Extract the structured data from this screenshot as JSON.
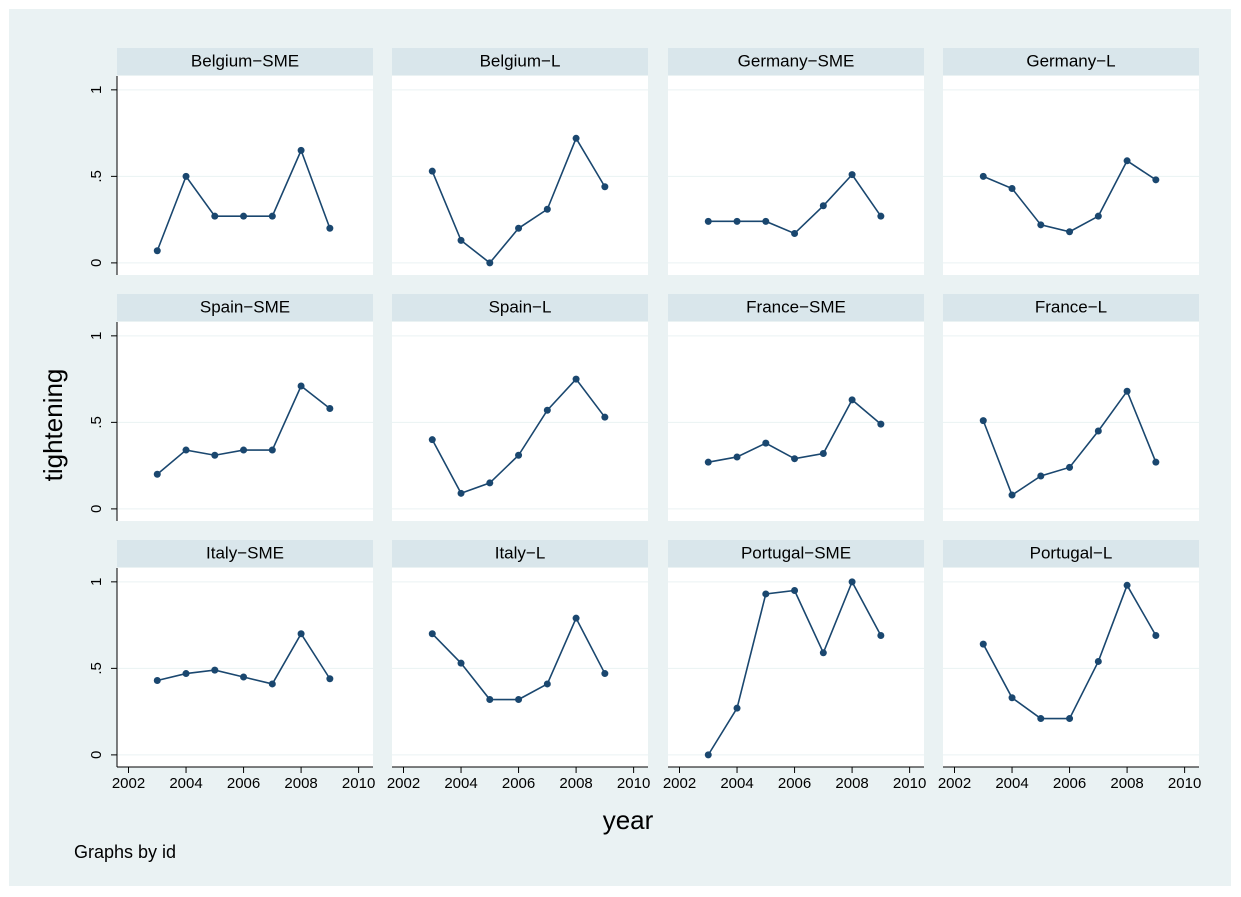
{
  "xlabel": "year",
  "ylabel": "tightening",
  "note": "Graphs by id",
  "xlim": [
    2001.6,
    2010.5
  ],
  "xticks": [
    2002,
    2004,
    2006,
    2008,
    2010
  ],
  "ylim": [
    -0.07,
    1.08
  ],
  "yticks": [
    0,
    {
      "value": 0.5,
      "label": ".5"
    },
    1
  ],
  "grid": true,
  "color": "#1a476f",
  "chart_data": [
    {
      "type": "line",
      "title": "Belgium−SME",
      "x": [
        2003,
        2004,
        2005,
        2006,
        2007,
        2008,
        2009
      ],
      "values": [
        0.07,
        0.5,
        0.27,
        0.27,
        0.27,
        0.65,
        0.2
      ]
    },
    {
      "type": "line",
      "title": "Belgium−L",
      "x": [
        2003,
        2004,
        2005,
        2006,
        2007,
        2008,
        2009
      ],
      "values": [
        0.53,
        0.13,
        0.0,
        0.2,
        0.31,
        0.72,
        0.44
      ]
    },
    {
      "type": "line",
      "title": "Germany−SME",
      "x": [
        2003,
        2004,
        2005,
        2006,
        2007,
        2008,
        2009
      ],
      "values": [
        0.24,
        0.24,
        0.24,
        0.17,
        0.33,
        0.51,
        0.27
      ]
    },
    {
      "type": "line",
      "title": "Germany−L",
      "x": [
        2003,
        2004,
        2005,
        2006,
        2007,
        2008,
        2009
      ],
      "values": [
        0.5,
        0.43,
        0.22,
        0.18,
        0.27,
        0.59,
        0.48
      ]
    },
    {
      "type": "line",
      "title": "Spain−SME",
      "x": [
        2003,
        2004,
        2005,
        2006,
        2007,
        2008,
        2009
      ],
      "values": [
        0.2,
        0.34,
        0.31,
        0.34,
        0.34,
        0.71,
        0.58
      ]
    },
    {
      "type": "line",
      "title": "Spain−L",
      "x": [
        2003,
        2004,
        2005,
        2006,
        2007,
        2008,
        2009
      ],
      "values": [
        0.4,
        0.09,
        0.15,
        0.31,
        0.57,
        0.75,
        0.53
      ]
    },
    {
      "type": "line",
      "title": "France−SME",
      "x": [
        2003,
        2004,
        2005,
        2006,
        2007,
        2008,
        2009
      ],
      "values": [
        0.27,
        0.3,
        0.38,
        0.29,
        0.32,
        0.63,
        0.49
      ]
    },
    {
      "type": "line",
      "title": "France−L",
      "x": [
        2003,
        2004,
        2005,
        2006,
        2007,
        2008,
        2009
      ],
      "values": [
        0.51,
        0.08,
        0.19,
        0.24,
        0.45,
        0.68,
        0.27
      ]
    },
    {
      "type": "line",
      "title": "Italy−SME",
      "x": [
        2003,
        2004,
        2005,
        2006,
        2007,
        2008,
        2009
      ],
      "values": [
        0.43,
        0.47,
        0.49,
        0.45,
        0.41,
        0.7,
        0.44
      ]
    },
    {
      "type": "line",
      "title": "Italy−L",
      "x": [
        2003,
        2004,
        2005,
        2006,
        2007,
        2008,
        2009
      ],
      "values": [
        0.7,
        0.53,
        0.32,
        0.32,
        0.41,
        0.79,
        0.47
      ]
    },
    {
      "type": "line",
      "title": "Portugal−SME",
      "x": [
        2003,
        2004,
        2005,
        2006,
        2007,
        2008,
        2009
      ],
      "values": [
        0.0,
        0.27,
        0.93,
        0.95,
        0.59,
        1.0,
        0.69
      ]
    },
    {
      "type": "line",
      "title": "Portugal−L",
      "x": [
        2003,
        2004,
        2005,
        2006,
        2007,
        2008,
        2009
      ],
      "values": [
        0.64,
        0.33,
        0.21,
        0.21,
        0.54,
        0.98,
        0.69
      ]
    }
  ]
}
